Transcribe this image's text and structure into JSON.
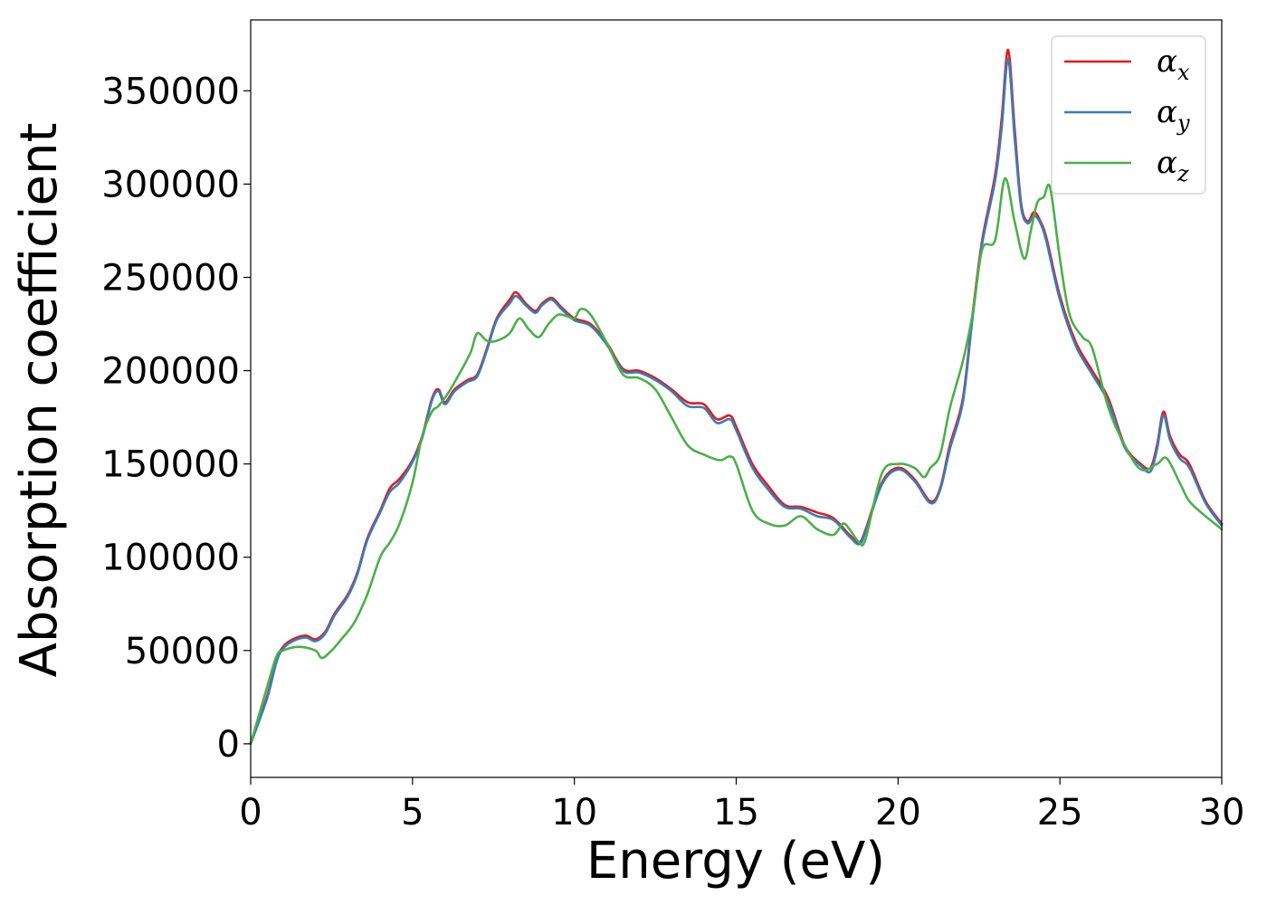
{
  "chart_data": {
    "type": "line",
    "title": "",
    "xlabel": "Energy (eV)",
    "ylabel": "Absorption coefficient",
    "xlim": [
      0,
      30
    ],
    "ylim": [
      -18000,
      388000
    ],
    "xticks": [
      0,
      5,
      10,
      15,
      20,
      25,
      30
    ],
    "xtick_labels": [
      "0",
      "5",
      "10",
      "15",
      "20",
      "25",
      "30"
    ],
    "yticks": [
      0,
      50000,
      100000,
      150000,
      200000,
      250000,
      300000,
      350000
    ],
    "ytick_labels": [
      "0",
      "50000",
      "100000",
      "150000",
      "200000",
      "250000",
      "300000",
      "350000"
    ],
    "grid": false,
    "legend_position": "top-right",
    "series": [
      {
        "name": "α",
        "subscript": "x",
        "color": "#e41a1c",
        "x": [
          0,
          0.5,
          0.8,
          1.0,
          1.3,
          1.7,
          2.0,
          2.3,
          2.6,
          3.0,
          3.3,
          3.6,
          4.0,
          4.3,
          4.6,
          5.0,
          5.3,
          5.6,
          5.8,
          6.0,
          6.3,
          6.7,
          7.0,
          7.3,
          7.6,
          8.0,
          8.2,
          8.5,
          8.8,
          9.0,
          9.3,
          9.6,
          10.0,
          10.5,
          11.0,
          11.5,
          12.0,
          12.5,
          13.0,
          13.5,
          14.0,
          14.4,
          14.8,
          15.0,
          15.5,
          16.0,
          16.5,
          17.0,
          17.5,
          18.0,
          18.5,
          18.8,
          19.0,
          19.5,
          20.0,
          20.5,
          21.0,
          21.3,
          21.6,
          22.0,
          22.3,
          22.6,
          23.0,
          23.2,
          23.4,
          23.6,
          23.8,
          24.0,
          24.2,
          24.4,
          24.6,
          25.0,
          25.5,
          26.0,
          26.5,
          27.0,
          27.5,
          27.8,
          28.0,
          28.2,
          28.4,
          28.7,
          29.0,
          29.5,
          30.0
        ],
        "y": [
          0,
          25000,
          45000,
          52000,
          56000,
          58000,
          56000,
          60000,
          70000,
          80000,
          92000,
          110000,
          125000,
          137000,
          142000,
          152000,
          165000,
          185000,
          190000,
          183000,
          190000,
          195000,
          198000,
          212000,
          228000,
          238000,
          242000,
          236000,
          232000,
          236000,
          239000,
          234000,
          228000,
          225000,
          215000,
          201000,
          200000,
          196000,
          190000,
          183000,
          182000,
          174000,
          176000,
          170000,
          150000,
          138000,
          128000,
          127000,
          124000,
          121000,
          112000,
          108000,
          115000,
          140000,
          148000,
          142000,
          130000,
          137000,
          160000,
          185000,
          230000,
          270000,
          305000,
          335000,
          372000,
          330000,
          290000,
          280000,
          285000,
          280000,
          270000,
          240000,
          215000,
          200000,
          185000,
          160000,
          150000,
          148000,
          160000,
          178000,
          165000,
          155000,
          150000,
          130000,
          118000
        ]
      },
      {
        "name": "α",
        "subscript": "y",
        "color": "#377eb8",
        "x": [
          0,
          0.5,
          0.8,
          1.0,
          1.3,
          1.7,
          2.0,
          2.3,
          2.6,
          3.0,
          3.3,
          3.6,
          4.0,
          4.3,
          4.6,
          5.0,
          5.3,
          5.6,
          5.8,
          6.0,
          6.3,
          6.7,
          7.0,
          7.3,
          7.6,
          8.0,
          8.2,
          8.5,
          8.8,
          9.0,
          9.3,
          9.6,
          10.0,
          10.5,
          11.0,
          11.5,
          12.0,
          12.5,
          13.0,
          13.5,
          14.0,
          14.4,
          14.8,
          15.0,
          15.5,
          16.0,
          16.5,
          17.0,
          17.5,
          18.0,
          18.5,
          18.8,
          19.0,
          19.5,
          20.0,
          20.5,
          21.0,
          21.3,
          21.6,
          22.0,
          22.3,
          22.6,
          23.0,
          23.2,
          23.4,
          23.6,
          23.8,
          24.0,
          24.2,
          24.4,
          24.6,
          25.0,
          25.5,
          26.0,
          26.5,
          27.0,
          27.5,
          27.8,
          28.0,
          28.2,
          28.4,
          28.7,
          29.0,
          29.5,
          30.0
        ],
        "y": [
          0,
          24000,
          44000,
          51000,
          55000,
          57000,
          55000,
          59000,
          69000,
          79000,
          91000,
          109000,
          124000,
          135000,
          140000,
          151000,
          164000,
          184000,
          189000,
          182000,
          189000,
          194000,
          197000,
          211000,
          227000,
          236000,
          240000,
          235000,
          231000,
          235000,
          238000,
          233000,
          227000,
          224000,
          214000,
          200000,
          199000,
          195000,
          189000,
          181000,
          180000,
          172000,
          174000,
          168000,
          148000,
          136000,
          127000,
          126000,
          122000,
          120000,
          111000,
          107000,
          114000,
          139000,
          147000,
          141000,
          129000,
          136000,
          158000,
          183000,
          228000,
          268000,
          302000,
          330000,
          367000,
          325000,
          288000,
          279000,
          283000,
          279000,
          268000,
          238000,
          213000,
          198000,
          183000,
          159000,
          149000,
          146000,
          158000,
          176000,
          163000,
          153000,
          148000,
          129000,
          117000
        ]
      },
      {
        "name": "α",
        "subscript": "z",
        "color": "#4daf4a",
        "x": [
          0,
          0.5,
          0.8,
          1.0,
          1.5,
          2.0,
          2.2,
          2.5,
          2.8,
          3.2,
          3.6,
          4.0,
          4.3,
          4.6,
          5.0,
          5.3,
          5.6,
          5.8,
          6.1,
          6.5,
          6.8,
          7.0,
          7.3,
          7.6,
          8.0,
          8.3,
          8.6,
          8.9,
          9.2,
          9.5,
          9.8,
          10.0,
          10.2,
          10.5,
          11.0,
          11.5,
          12.0,
          12.5,
          13.0,
          13.5,
          14.0,
          14.5,
          14.8,
          15.0,
          15.5,
          16.0,
          16.5,
          17.0,
          17.5,
          18.0,
          18.3,
          18.5,
          18.8,
          19.0,
          19.5,
          20.0,
          20.5,
          20.8,
          21.0,
          21.3,
          21.6,
          22.0,
          22.3,
          22.6,
          23.0,
          23.3,
          23.6,
          23.9,
          24.1,
          24.3,
          24.5,
          24.7,
          25.0,
          25.3,
          25.7,
          26.0,
          26.5,
          27.0,
          27.5,
          28.0,
          28.3,
          28.7,
          29.0,
          29.5,
          30.0
        ],
        "y": [
          0,
          30000,
          47000,
          50000,
          52000,
          50000,
          46000,
          50000,
          56000,
          65000,
          80000,
          100000,
          108000,
          118000,
          140000,
          165000,
          178000,
          181000,
          188000,
          200000,
          210000,
          220000,
          216000,
          216000,
          220000,
          228000,
          222000,
          218000,
          225000,
          230000,
          229000,
          228000,
          233000,
          230000,
          215000,
          198000,
          196000,
          190000,
          175000,
          160000,
          155000,
          152000,
          154000,
          150000,
          125000,
          118000,
          117000,
          122000,
          115000,
          112000,
          118000,
          115000,
          108000,
          110000,
          145000,
          150000,
          148000,
          143000,
          148000,
          155000,
          180000,
          205000,
          230000,
          265000,
          270000,
          303000,
          280000,
          260000,
          275000,
          290000,
          293000,
          298000,
          260000,
          230000,
          218000,
          212000,
          180000,
          160000,
          147000,
          150000,
          153000,
          140000,
          130000,
          122000,
          115000
        ]
      }
    ]
  }
}
